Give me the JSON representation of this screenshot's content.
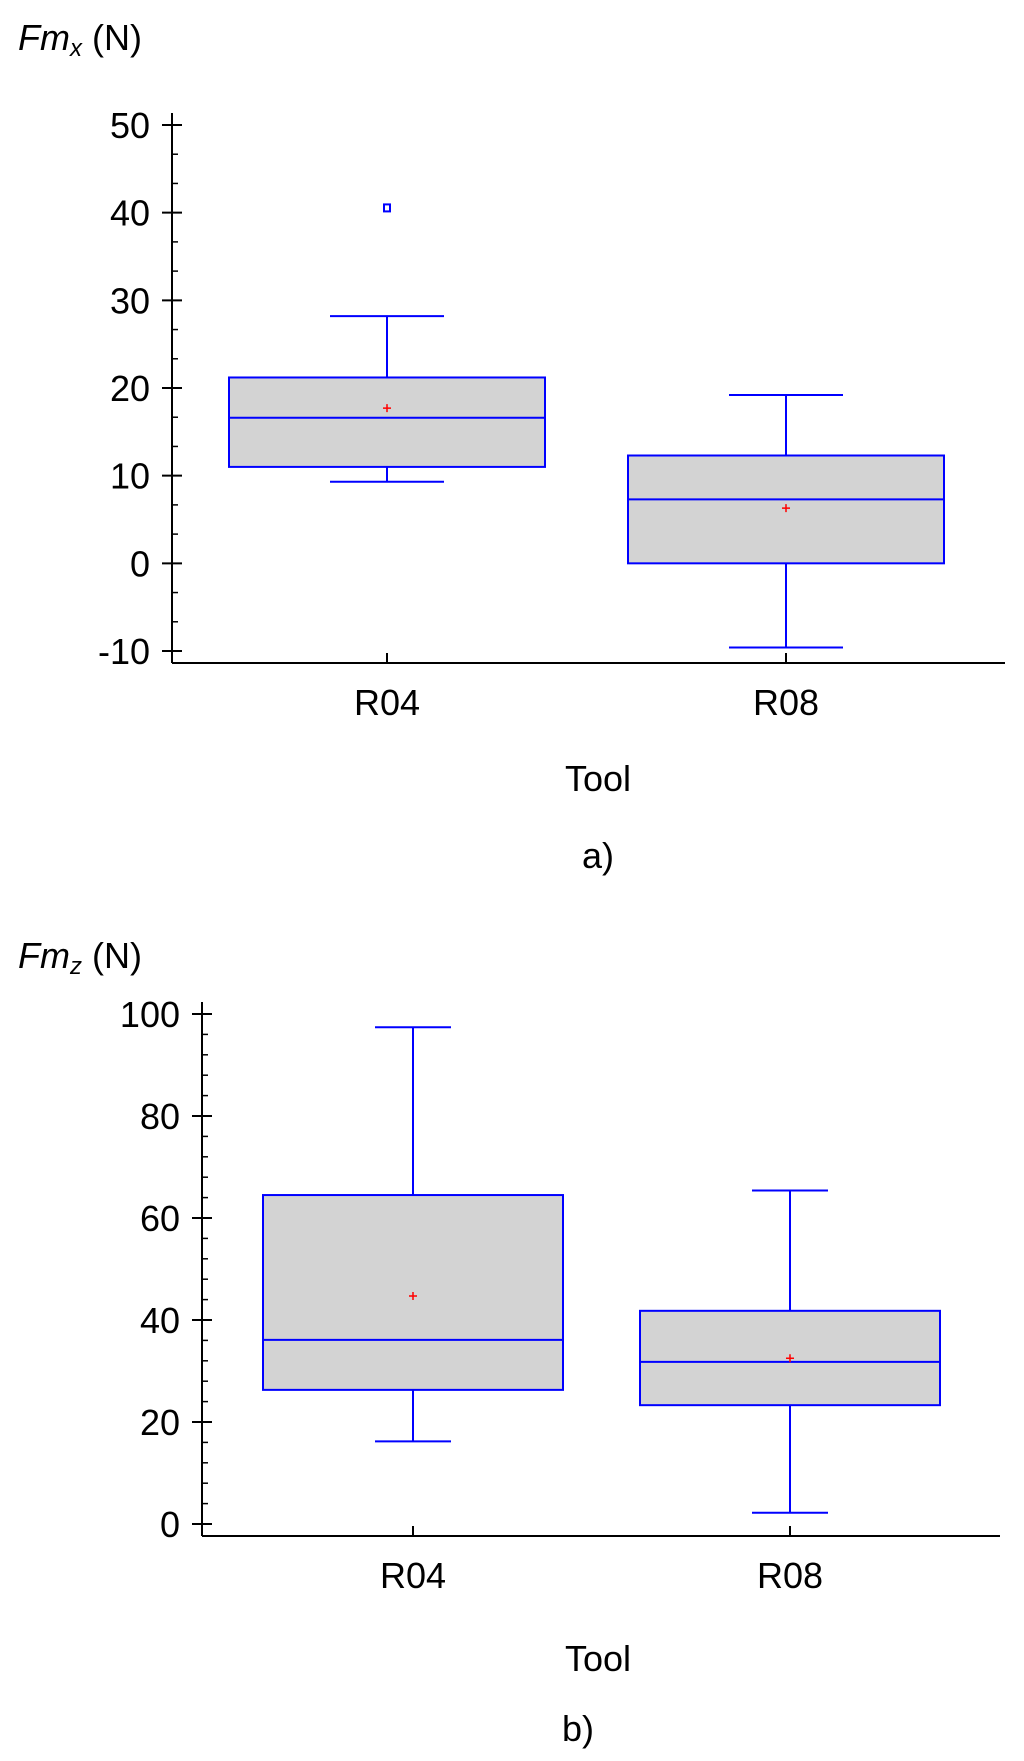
{
  "charts": [
    {
      "ylabel_var": "Fm",
      "ylabel_sub": "x",
      "ylabel_unit": "(N)",
      "xlabel": "Tool",
      "caption": "a)"
    },
    {
      "ylabel_var": "Fm",
      "ylabel_sub": "z",
      "ylabel_unit": "(N)",
      "xlabel": "Tool",
      "caption": "b)"
    }
  ],
  "colors": {
    "box_fill": "#d3d3d3",
    "box_stroke": "#0000ff",
    "mean_marker": "#ff0000",
    "axis": "#000000"
  },
  "chart_data": [
    {
      "type": "box",
      "categories": [
        "R04",
        "R08"
      ],
      "ylim": [
        -10,
        50
      ],
      "yticks": [
        -10,
        0,
        10,
        20,
        30,
        40,
        50
      ],
      "yminor": 2,
      "boxes": [
        {
          "whisker_low": 9.3,
          "q1": 11.0,
          "median": 16.6,
          "q3": 21.2,
          "whisker_high": 28.2,
          "mean": 17.7,
          "outliers": [
            40.6
          ]
        },
        {
          "whisker_low": -9.6,
          "q1": 0,
          "median": 7.3,
          "q3": 12.3,
          "whisker_high": 19.2,
          "mean": 6.3,
          "outliers": []
        }
      ]
    },
    {
      "type": "box",
      "categories": [
        "R04",
        "R08"
      ],
      "ylim": [
        0,
        100
      ],
      "yticks": [
        0,
        20,
        40,
        60,
        80,
        100
      ],
      "yminor": 4,
      "boxes": [
        {
          "whisker_low": 16.2,
          "q1": 26.3,
          "median": 36.1,
          "q3": 64.5,
          "whisker_high": 97.4,
          "mean": 44.7,
          "outliers": []
        },
        {
          "whisker_low": 2.2,
          "q1": 23.3,
          "median": 31.8,
          "q3": 41.8,
          "whisker_high": 65.4,
          "mean": 32.5,
          "outliers": []
        }
      ]
    }
  ]
}
